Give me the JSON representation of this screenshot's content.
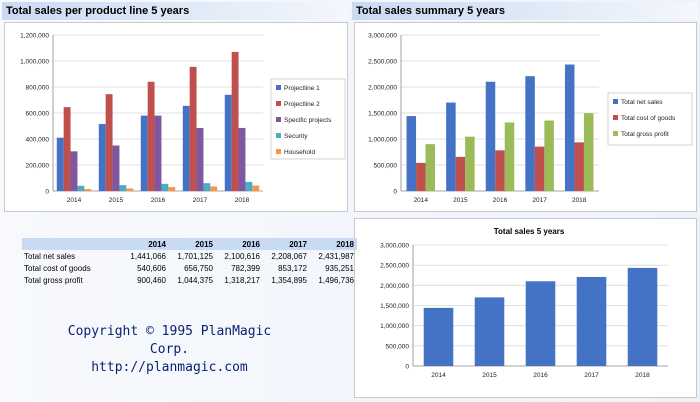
{
  "panels": {
    "left_title": "Total sales per product line  5 years",
    "right_title": "Total sales summary  5 years"
  },
  "chart_data": [
    {
      "type": "bar",
      "categories": [
        "2014",
        "2015",
        "2016",
        "2017",
        "2018"
      ],
      "ylim": [
        0,
        1200000
      ],
      "yticks": [
        "0",
        "200,000",
        "400,000",
        "600,000",
        "800,000",
        "1,000,000",
        "1,200,000"
      ],
      "legend_position": "right",
      "grid": "horizontal",
      "series": [
        {
          "name": "Projectline 1",
          "color": "#4472c4",
          "values": [
            410000,
            515000,
            580000,
            655000,
            740000
          ]
        },
        {
          "name": "Projectline 2",
          "color": "#c0504d",
          "values": [
            645000,
            745000,
            840000,
            955000,
            1070000
          ]
        },
        {
          "name": "Specific projects",
          "color": "#7f56a0",
          "values": [
            305000,
            350000,
            580000,
            485000,
            485000
          ]
        },
        {
          "name": "Security",
          "color": "#4bacc6",
          "values": [
            40000,
            45000,
            55000,
            60000,
            70000
          ]
        },
        {
          "name": "Household",
          "color": "#f79646",
          "values": [
            15000,
            20000,
            30000,
            35000,
            42000
          ]
        }
      ]
    },
    {
      "type": "bar",
      "categories": [
        "2014",
        "2015",
        "2016",
        "2017",
        "2018"
      ],
      "ylim": [
        0,
        3000000
      ],
      "yticks": [
        "0",
        "500,000",
        "1,000,000",
        "1,500,000",
        "2,000,000",
        "2,500,000",
        "3,000,000"
      ],
      "legend_position": "right",
      "grid": "horizontal",
      "series": [
        {
          "name": "Total net sales",
          "color": "#4472c4",
          "values": [
            1441066,
            1701125,
            2100616,
            2208067,
            2431987
          ]
        },
        {
          "name": "Total cost of goods",
          "color": "#c0504d",
          "values": [
            540606,
            656750,
            782399,
            853172,
            935251
          ]
        },
        {
          "name": "Total gross profit",
          "color": "#9bbb59",
          "values": [
            900460,
            1044375,
            1318217,
            1354895,
            1496736
          ]
        }
      ]
    },
    {
      "type": "bar",
      "title": "Total sales 5 years",
      "categories": [
        "2014",
        "2015",
        "2016",
        "2017",
        "2018"
      ],
      "ylim": [
        0,
        3000000
      ],
      "yticks": [
        "0",
        "500,000",
        "1,000,000",
        "1,500,000",
        "2,000,000",
        "2,500,000",
        "3,000,000"
      ],
      "grid": "horizontal",
      "series": [
        {
          "color": "#4472c4",
          "values": [
            1441066,
            1701125,
            2100616,
            2208067,
            2431987
          ]
        }
      ]
    }
  ],
  "table": {
    "years": [
      "2014",
      "2015",
      "2016",
      "2017",
      "2018"
    ],
    "rows": [
      {
        "label": "Total net sales",
        "values": [
          "1,441,066",
          "1,701,125",
          "2,100,616",
          "2,208,067",
          "2,431,987"
        ]
      },
      {
        "label": "Total cost of goods",
        "values": [
          "540,606",
          "656,750",
          "782,399",
          "853,172",
          "935,251"
        ]
      },
      {
        "label": "Total gross profit",
        "values": [
          "900,460",
          "1,044,375",
          "1,318,217",
          "1,354,895",
          "1,496,736"
        ]
      }
    ]
  },
  "copyright": {
    "line1": "Copyright © 1995 PlanMagic Corp.",
    "line2": "http://planmagic.com"
  }
}
